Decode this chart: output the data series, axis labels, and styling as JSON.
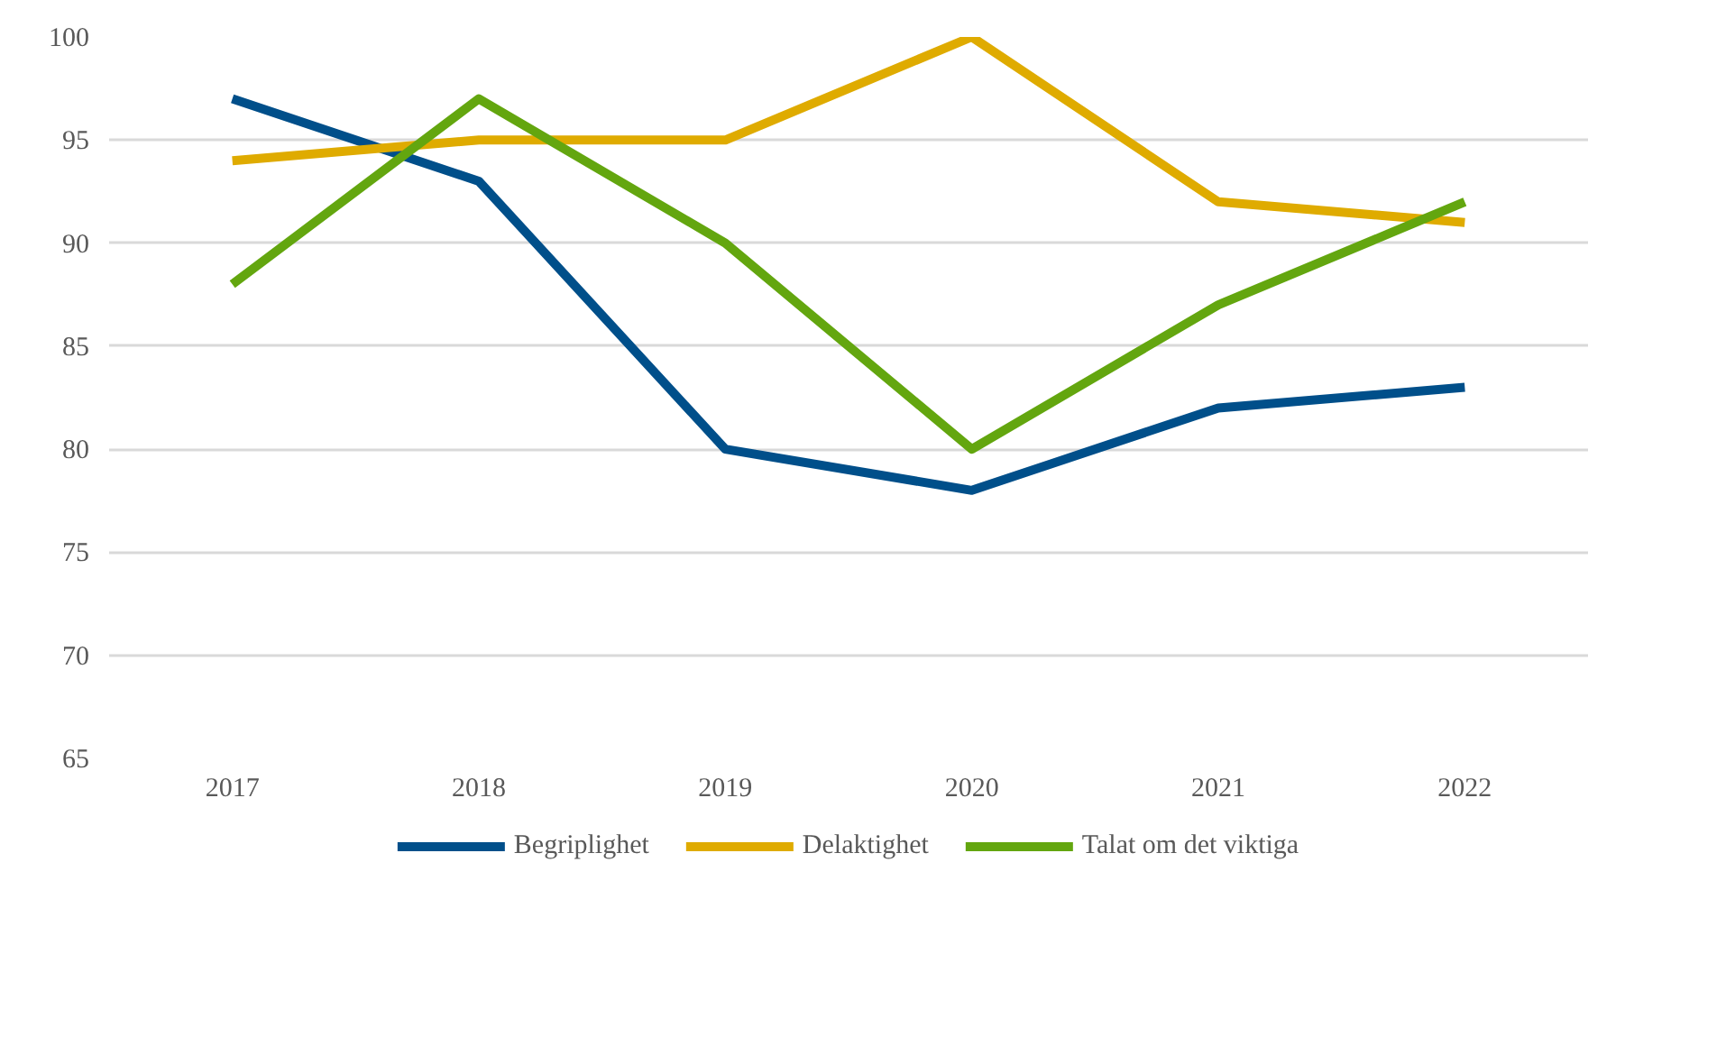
{
  "chart_data": {
    "type": "line",
    "categories": [
      "2017",
      "2018",
      "2019",
      "2020",
      "2021",
      "2022"
    ],
    "series": [
      {
        "name": "Begriplighet",
        "color": "#004f8a",
        "values": [
          97,
          93,
          80,
          78,
          82,
          83
        ]
      },
      {
        "name": "Delaktighet",
        "color": "#dfab00",
        "values": [
          94,
          95,
          95,
          100,
          92,
          91
        ]
      },
      {
        "name": "Talat om det viktiga",
        "color": "#63a60f",
        "values": [
          88,
          97,
          90,
          80,
          87,
          92
        ]
      }
    ],
    "ylim": [
      65,
      100
    ],
    "yticks": [
      65,
      70,
      75,
      80,
      85,
      90,
      95,
      100
    ],
    "grid": "y",
    "legend": "bottom",
    "marker": "none",
    "line_style": "solid"
  }
}
